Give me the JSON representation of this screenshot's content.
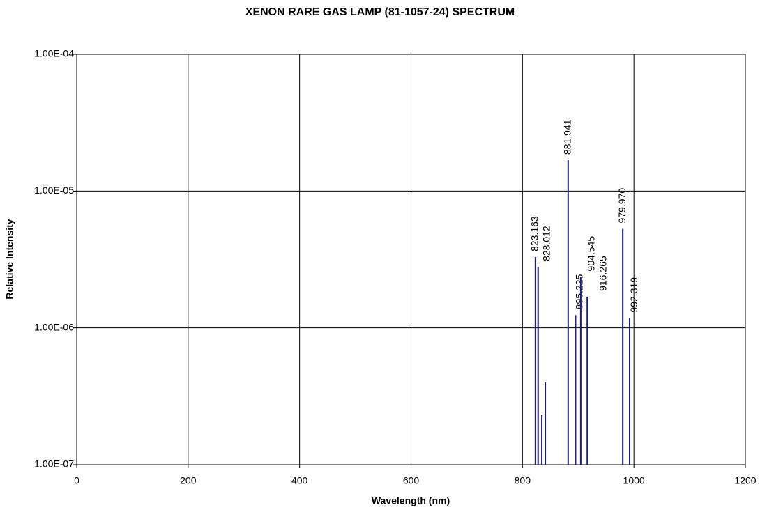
{
  "chart_data": {
    "type": "stem",
    "title": "XENON RARE GAS LAMP (81-1057-24) SPECTRUM",
    "x_label": "Wavelength (nm)",
    "y_label": "Relative Intensity",
    "x": [
      823.163,
      828.012,
      834.7,
      840.9,
      881.941,
      895.225,
      904.545,
      916.265,
      979.97,
      992.319
    ],
    "values": [
      3.3e-06,
      2.8e-06,
      2.3e-07,
      4e-07,
      1.68e-05,
      1.24e-06,
      2.36e-06,
      1.69e-06,
      5.3e-06,
      1.18e-06
    ],
    "line_labels": [
      "823.163",
      "828.012",
      null,
      null,
      "881.941",
      "895.225",
      "904.545",
      "916.265",
      "979.970",
      "992.319"
    ],
    "color": "#1c1c7a",
    "xlim": [
      0,
      1200
    ],
    "xticks": [
      0,
      200,
      400,
      600,
      800,
      1000,
      1200
    ],
    "ylim": [
      1e-07,
      0.0001
    ],
    "yticks": [
      {
        "value": 1e-07,
        "label": "1.00E-07"
      },
      {
        "value": 1e-06,
        "label": "1.00E-06"
      },
      {
        "value": 1e-05,
        "label": "1.00E-05"
      },
      {
        "value": 0.0001,
        "label": "1.00E-04"
      }
    ],
    "y_scale": "log",
    "grid": true
  }
}
